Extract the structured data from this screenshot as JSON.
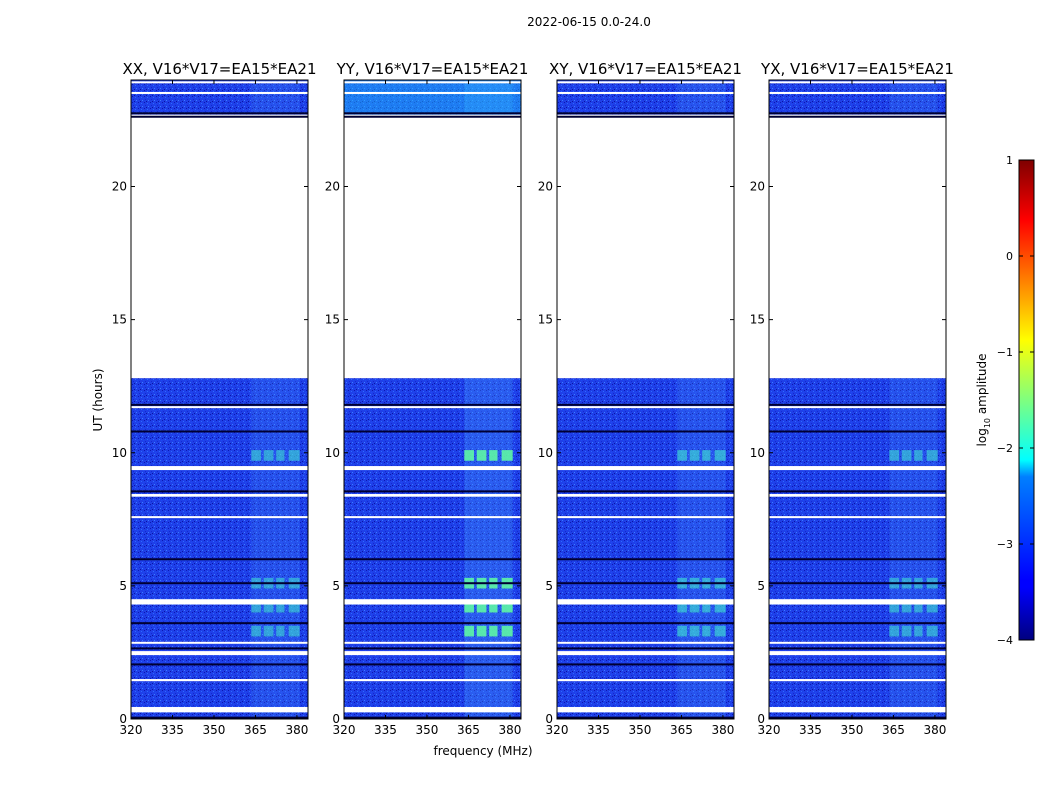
{
  "chart_data": {
    "type": "heatmap",
    "title": "2022-06-15 0.0-24.0",
    "xlabel": "frequency (MHz)",
    "ylabel": "UT (hours)",
    "xlim": [
      320,
      384
    ],
    "ylim": [
      0,
      24
    ],
    "xticks": [
      "320",
      "335",
      "350",
      "365",
      "380"
    ],
    "yticks": [
      "0",
      "5",
      "10",
      "15",
      "20"
    ],
    "panels": [
      {
        "title": "XX, V16*V17=EA15*EA21",
        "polarization": "XX"
      },
      {
        "title": "YY, V16*V17=EA15*EA21",
        "polarization": "YY"
      },
      {
        "title": "XY, V16*V17=EA15*EA21",
        "polarization": "XY"
      },
      {
        "title": "YX, V16*V17=EA15*EA21",
        "polarization": "YX"
      }
    ],
    "data_coverage_hours": [
      [
        0,
        12.8
      ],
      [
        22.7,
        24
      ]
    ],
    "colorbar": {
      "label": "log₁₀ amplitude",
      "label_main": "log",
      "label_sub": "10",
      "label_rest": " amplitude",
      "range": [
        -4,
        1
      ],
      "ticks": [
        "1",
        "0",
        "−1",
        "−2",
        "−3",
        "−4"
      ],
      "colormap": "jet"
    }
  }
}
